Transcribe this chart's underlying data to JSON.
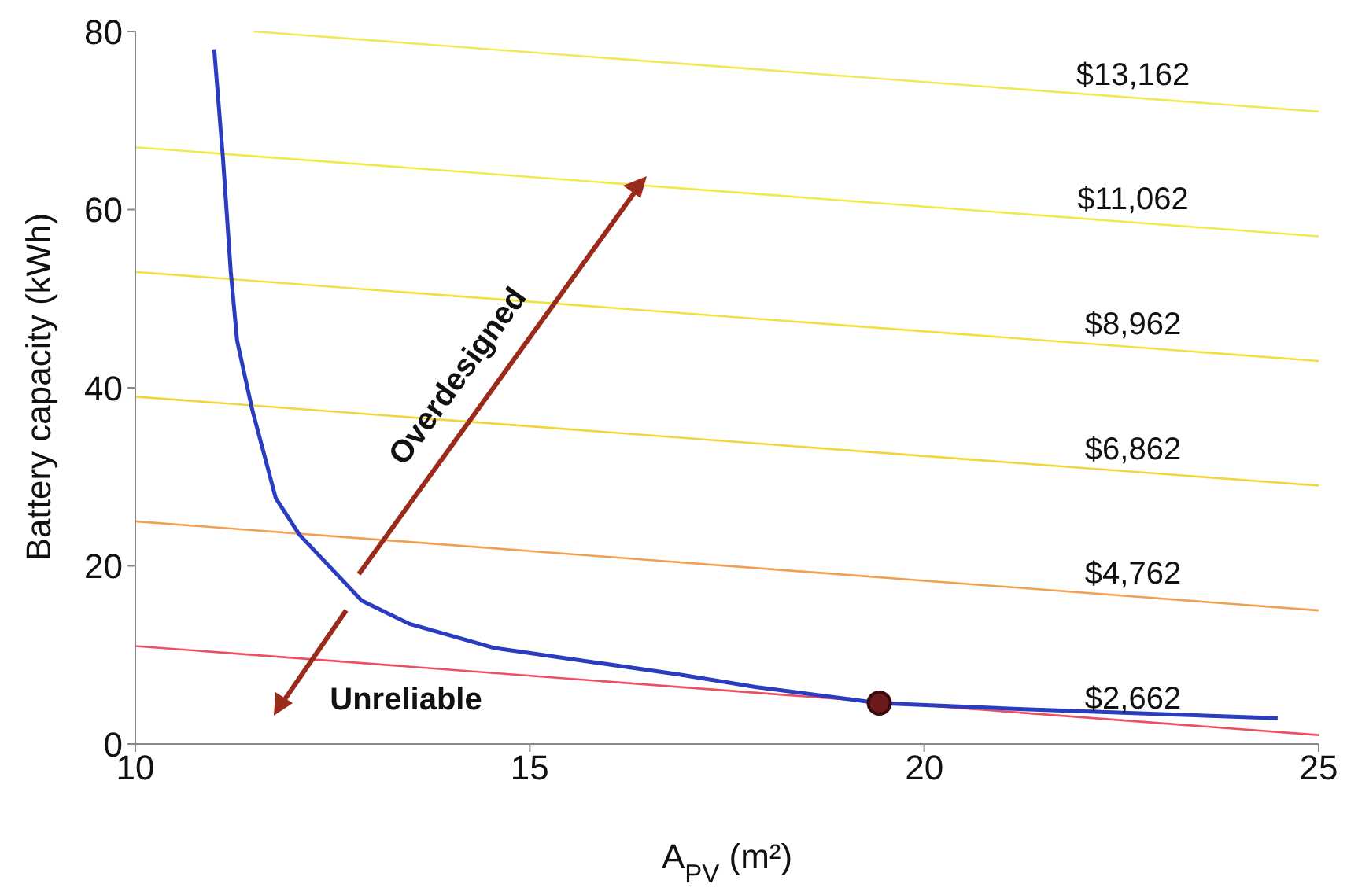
{
  "chart_data": {
    "type": "line",
    "xlabel": "A$_{PV}$ (m²)",
    "ylabel": "Battery capacity (kWh)",
    "xlim": [
      10,
      25
    ],
    "ylim": [
      0,
      80
    ],
    "xticks": [
      10,
      15,
      20,
      25
    ],
    "yticks": [
      0,
      20,
      40,
      60,
      80
    ],
    "marker": "none",
    "line_style": "solid",
    "annotations": [
      "Overdesigned",
      "Unreliable"
    ],
    "series": [
      {
        "name": "$13,162",
        "color": "#f2e85a",
        "x": [
          11.5,
          25
        ],
        "values": [
          80,
          71
        ]
      },
      {
        "name": "$11,062",
        "color": "#f2ea4a",
        "x": [
          10,
          25
        ],
        "values": [
          67,
          57
        ]
      },
      {
        "name": "$8,962",
        "color": "#f2e040",
        "x": [
          10,
          25
        ],
        "values": [
          53,
          43
        ]
      },
      {
        "name": "$6,862",
        "color": "#f2d43c",
        "x": [
          10,
          25
        ],
        "values": [
          39,
          29
        ]
      },
      {
        "name": "$4,762",
        "color": "#f0a050",
        "x": [
          10,
          25
        ],
        "values": [
          25,
          15
        ]
      },
      {
        "name": "$2,662",
        "color": "#ec5060",
        "x": [
          10,
          25
        ],
        "values": [
          11,
          1
        ]
      },
      {
        "color": "#2a3cc0",
        "x": [
          11.0,
          11.11,
          11.21,
          11.29,
          11.48,
          11.78,
          12.08,
          12.87,
          13.47,
          14.54,
          15.87,
          16.9,
          17.86,
          19.43,
          21.26,
          24.48
        ],
        "values": [
          78,
          65.9,
          53,
          45.3,
          37.6,
          27.6,
          23.5,
          16.1,
          13.5,
          10.8,
          9.1,
          7.8,
          6.4,
          4.6,
          3.9,
          2.9
        ]
      },
      {
        "type": "scatter",
        "marker": "circle",
        "color": "#6a1a1a",
        "x": [
          19.43
        ],
        "values": [
          4.6
        ]
      }
    ]
  }
}
